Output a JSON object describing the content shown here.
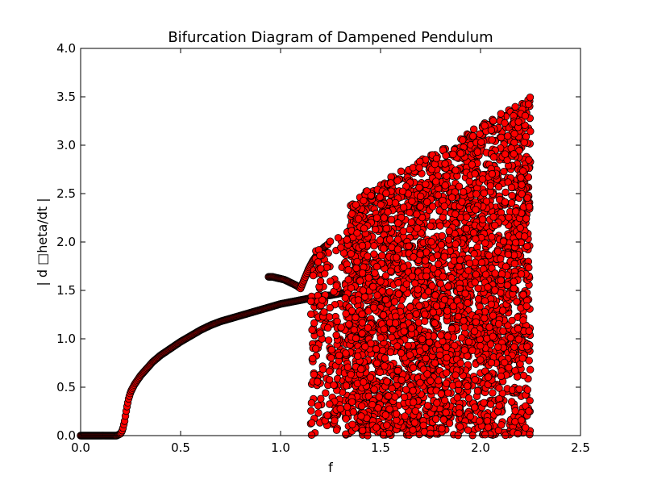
{
  "chart_data": {
    "type": "scatter",
    "title": "Bifurcation Diagram of Dampened Pendulum",
    "xlabel": "f",
    "ylabel": "| d □heta/dt |",
    "xlim": [
      0.0,
      2.5
    ],
    "ylim": [
      0.0,
      4.0
    ],
    "xticks": [
      "0.0",
      "0.5",
      "1.0",
      "1.5",
      "2.0",
      "2.5"
    ],
    "yticks": [
      "0.0",
      "0.5",
      "1.0",
      "1.5",
      "2.0",
      "2.5",
      "3.0",
      "3.5",
      "4.0"
    ],
    "grid": false,
    "marker_color": "#ff0000",
    "marker_edge_color": "#000000",
    "series": [
      {
        "region": "periodic-branch",
        "points": [
          [
            0.0,
            0.0
          ],
          [
            0.05,
            0.0
          ],
          [
            0.1,
            0.0
          ],
          [
            0.15,
            0.0
          ],
          [
            0.18,
            0.0
          ],
          [
            0.2,
            0.02
          ],
          [
            0.21,
            0.06
          ],
          [
            0.22,
            0.15
          ],
          [
            0.23,
            0.28
          ],
          [
            0.24,
            0.38
          ],
          [
            0.25,
            0.45
          ],
          [
            0.27,
            0.53
          ],
          [
            0.3,
            0.62
          ],
          [
            0.33,
            0.69
          ],
          [
            0.36,
            0.76
          ],
          [
            0.4,
            0.83
          ],
          [
            0.45,
            0.9
          ],
          [
            0.5,
            0.97
          ],
          [
            0.55,
            1.03
          ],
          [
            0.6,
            1.09
          ],
          [
            0.65,
            1.14
          ],
          [
            0.7,
            1.18
          ],
          [
            0.75,
            1.21
          ],
          [
            0.8,
            1.24
          ],
          [
            0.85,
            1.27
          ],
          [
            0.9,
            1.3
          ],
          [
            0.95,
            1.33
          ],
          [
            1.0,
            1.36
          ],
          [
            1.05,
            1.38
          ],
          [
            1.1,
            1.4
          ],
          [
            1.15,
            1.42
          ],
          [
            1.2,
            1.44
          ],
          [
            1.25,
            1.45
          ],
          [
            1.3,
            1.47
          ],
          [
            1.33,
            1.48
          ]
        ]
      },
      {
        "region": "upper-branch",
        "points": [
          [
            0.94,
            1.64
          ],
          [
            0.96,
            1.64
          ],
          [
            0.98,
            1.63
          ],
          [
            1.0,
            1.62
          ],
          [
            1.02,
            1.61
          ],
          [
            1.05,
            1.58
          ],
          [
            1.08,
            1.55
          ],
          [
            1.1,
            1.52
          ],
          [
            1.12,
            1.62
          ],
          [
            1.14,
            1.72
          ],
          [
            1.16,
            1.8
          ],
          [
            1.18,
            1.86
          ],
          [
            1.2,
            1.91
          ],
          [
            1.22,
            1.95
          ],
          [
            1.24,
            1.98
          ]
        ]
      },
      {
        "region": "chaotic",
        "f_range": [
          1.15,
          2.25
        ],
        "y_range": [
          0.0,
          3.52
        ]
      }
    ]
  }
}
